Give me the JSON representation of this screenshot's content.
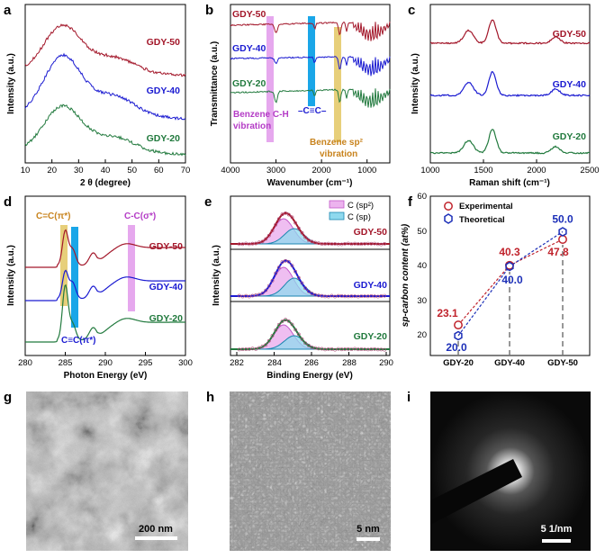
{
  "colors": {
    "gdy50": "#a3172a",
    "gdy40": "#1b1bd1",
    "gdy20": "#227a3e",
    "pink": "#e6a8ee",
    "cyan": "#1aa6e8",
    "gold": "#e7cf7a",
    "expt": "#c0232c",
    "theo": "#1c2fb8"
  },
  "panels": {
    "a": {
      "label": "a",
      "ylabel": "Intensity (a.u.)",
      "xlabel": "2 θ (degree)",
      "xticks": [
        "10",
        "20",
        "30",
        "40",
        "50",
        "60",
        "70"
      ],
      "series": [
        "GDY-50",
        "GDY-40",
        "GDY-20"
      ]
    },
    "b": {
      "label": "b",
      "ylabel": "Transmittance (a.u.)",
      "xlabel": "Wavenumber (cm⁻¹)",
      "xticks": [
        "4000",
        "3000",
        "2000",
        "1000"
      ],
      "series": [
        "GDY-50",
        "GDY-40",
        "GDY-20"
      ],
      "ann_ch_1": "Benzene C-H",
      "ann_ch_2": "vibration",
      "ann_cc": "–C≡C–",
      "ann_sp2_1": "Benzene sp²",
      "ann_sp2_2": "vibration"
    },
    "c": {
      "label": "c",
      "ylabel": "Intensity (a.u.)",
      "xlabel": "Raman shift (cm⁻¹)",
      "xticks": [
        "1000",
        "1500",
        "2000",
        "2500"
      ],
      "series": [
        "GDY-50",
        "GDY-40",
        "GDY-20"
      ]
    },
    "d": {
      "label": "d",
      "ylabel": "Intensity (a.u.)",
      "xlabel": "Photon Energy (eV)",
      "xticks": [
        "280",
        "285",
        "290",
        "295",
        "300"
      ],
      "series": [
        "GDY-50",
        "GDY-40",
        "GDY-20"
      ],
      "ann_cc_pi": "C=C(π*)",
      "ann_ccs": "C-C(σ*)",
      "ann_ct_pi": "C≡C(π*)"
    },
    "e": {
      "label": "e",
      "ylabel": "Intensity (a.u.)",
      "xlabel": "Binding Energy (eV)",
      "xticks": [
        "282",
        "284",
        "286",
        "288",
        "290"
      ],
      "series": [
        "GDY-50",
        "GDY-40",
        "GDY-20"
      ],
      "legend_sp2": "C (sp²)",
      "legend_sp": "C (sp)"
    },
    "f": {
      "label": "f",
      "ylabel": "sp-carbon content (at%)",
      "yticks": [
        "20",
        "30",
        "40",
        "50",
        "60"
      ],
      "legend_exp": "Experimental",
      "legend_theo": "Theoretical"
    },
    "g": {
      "label": "g",
      "scalebar": "200 nm"
    },
    "h": {
      "label": "h",
      "scalebar": "5 nm"
    },
    "i": {
      "label": "i",
      "scalebar": "5 1/nm"
    }
  },
  "chart_data": [
    {
      "type": "line",
      "panel": "a",
      "title": "",
      "xlabel": "2θ (degree)",
      "ylabel": "Intensity (a.u.)",
      "xlim": [
        10,
        70
      ],
      "series": [
        {
          "name": "GDY-50",
          "peak_x": 24
        },
        {
          "name": "GDY-40",
          "peak_x": 24
        },
        {
          "name": "GDY-20",
          "peak_x": 23
        }
      ]
    },
    {
      "type": "line",
      "panel": "b",
      "xlabel": "Wavenumber (cm-1)",
      "ylabel": "Transmittance (a.u.)",
      "xlim": [
        4000,
        500
      ],
      "bands": [
        {
          "label": "Benzene C-H vibration",
          "x": 3000
        },
        {
          "label": "–C≡C–",
          "x": 2150
        },
        {
          "label": "Benzene sp2 vibration",
          "x": 1600
        }
      ],
      "series": [
        {
          "name": "GDY-50"
        },
        {
          "name": "GDY-40"
        },
        {
          "name": "GDY-20"
        }
      ]
    },
    {
      "type": "line",
      "panel": "c",
      "xlabel": "Raman shift (cm-1)",
      "ylabel": "Intensity (a.u.)",
      "xlim": [
        1000,
        2500
      ],
      "peaks": [
        1360,
        1580,
        2180
      ],
      "series": [
        {
          "name": "GDY-50"
        },
        {
          "name": "GDY-40"
        },
        {
          "name": "GDY-20"
        }
      ]
    },
    {
      "type": "line",
      "panel": "d",
      "xlabel": "Photon Energy (eV)",
      "ylabel": "Intensity (a.u.)",
      "xlim": [
        280,
        300
      ],
      "bands": [
        {
          "label": "C=C(π*)",
          "x": 285
        },
        {
          "label": "C≡C(π*)",
          "x": 286.1
        },
        {
          "label": "C-C(σ*)",
          "x": 293
        }
      ],
      "series": [
        {
          "name": "GDY-50"
        },
        {
          "name": "GDY-40"
        },
        {
          "name": "GDY-20"
        }
      ]
    },
    {
      "type": "line",
      "panel": "e",
      "xlabel": "Binding Energy (eV)",
      "ylabel": "Intensity (a.u.)",
      "xlim": [
        281,
        290
      ],
      "components": [
        {
          "name": "C (sp2)",
          "center": 284.0
        },
        {
          "name": "C (sp)",
          "center": 284.6
        }
      ],
      "series": [
        {
          "name": "GDY-50"
        },
        {
          "name": "GDY-40"
        },
        {
          "name": "GDY-20"
        }
      ]
    },
    {
      "type": "scatter",
      "panel": "f",
      "categories": [
        "GDY-20",
        "GDY-40",
        "GDY-50"
      ],
      "ylabel": "sp-carbon content (at%)",
      "ylim": [
        15,
        65
      ],
      "series": [
        {
          "name": "Experimental",
          "values": [
            23.1,
            40.3,
            47.8
          ],
          "labels": [
            "23.1",
            "40.3",
            "47.8"
          ]
        },
        {
          "name": "Theoretical",
          "values": [
            20.0,
            40.0,
            50.0
          ],
          "labels": [
            "20.0",
            "40.0",
            "50.0"
          ]
        }
      ]
    }
  ]
}
